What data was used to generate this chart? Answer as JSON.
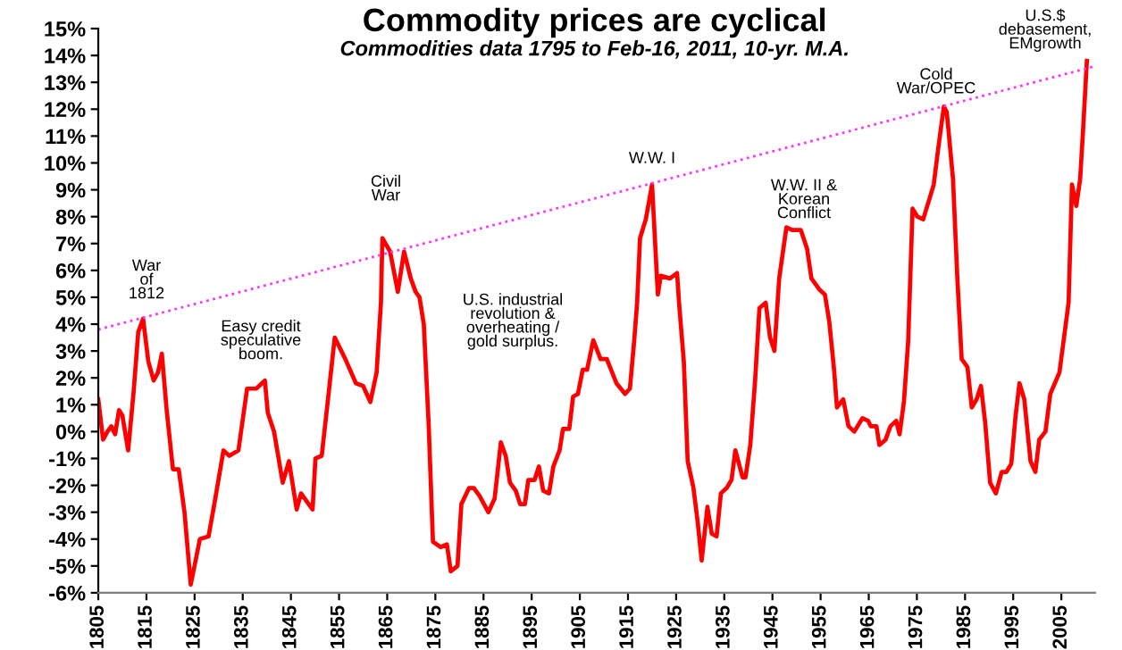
{
  "chart_data": {
    "type": "line",
    "title": "Commodity prices are cyclical",
    "subtitle": "Commodities data 1795 to Feb-16, 2011, 10-yr. M.A.",
    "xlim": [
      1805,
      2012
    ],
    "xticks": [
      1805,
      1815,
      1825,
      1835,
      1845,
      1855,
      1865,
      1875,
      1885,
      1895,
      1905,
      1915,
      1925,
      1935,
      1945,
      1955,
      1965,
      1975,
      1985,
      1995,
      2005
    ],
    "ylim": [
      -6,
      15
    ],
    "yticks": [
      {
        "value": -6,
        "label": "-6%"
      },
      {
        "value": -5,
        "label": "-5%"
      },
      {
        "value": -4,
        "label": "-4%"
      },
      {
        "value": -3,
        "label": "-3%"
      },
      {
        "value": -2,
        "label": "-2%"
      },
      {
        "value": -1,
        "label": "-1%"
      },
      {
        "value": 0,
        "label": "0%"
      },
      {
        "value": 1,
        "label": "1%"
      },
      {
        "value": 2,
        "label": "2%"
      },
      {
        "value": 3,
        "label": "3%"
      },
      {
        "value": 4,
        "label": "4%"
      },
      {
        "value": 5,
        "label": "5%"
      },
      {
        "value": 6,
        "label": "6%"
      },
      {
        "value": 7,
        "label": "7%"
      },
      {
        "value": 8,
        "label": "8%"
      },
      {
        "value": 9,
        "label": "9%"
      },
      {
        "value": 10,
        "label": "10%"
      },
      {
        "value": 11,
        "label": "11%"
      },
      {
        "value": 12,
        "label": "12%"
      },
      {
        "value": 13,
        "label": "13%"
      },
      {
        "value": 14,
        "label": "14%"
      },
      {
        "value": 15,
        "label": "15%"
      }
    ],
    "grid": false,
    "series": [
      {
        "color": "#ff0000",
        "line_style": "solid",
        "x": [
          1805,
          1806,
          1806.9,
          1807.7,
          1808.5,
          1809.3,
          1810,
          1811.2,
          1812.3,
          1813.3,
          1814.3,
          1815.4,
          1816.5,
          1817.4,
          1818.2,
          1819.2,
          1820.5,
          1821.7,
          1822.9,
          1824.2,
          1826.1,
          1827.9,
          1829.1,
          1831,
          1832.2,
          1834.1,
          1835.9,
          1837.8,
          1839.6,
          1840.2,
          1841.5,
          1843.3,
          1844.6,
          1846.2,
          1847.1,
          1849.5,
          1850.1,
          1851.4,
          1852.7,
          1854.1,
          1856.3,
          1858.5,
          1860,
          1861.5,
          1862.8,
          1863.7,
          1864,
          1865.6,
          1867.2,
          1868.5,
          1869.9,
          1870.9,
          1871.7,
          1872.6,
          1873.6,
          1874.5,
          1876.1,
          1877.4,
          1878.2,
          1879.6,
          1880.4,
          1882,
          1883,
          1884.2,
          1886,
          1887.3,
          1888.6,
          1889.6,
          1890.5,
          1891.7,
          1892.6,
          1893.6,
          1894.3,
          1895.6,
          1896.5,
          1897.4,
          1898.6,
          1899.5,
          1900.8,
          1901.5,
          1902.8,
          1903.6,
          1904.6,
          1905.6,
          1906.5,
          1907.8,
          1909.3,
          1910.6,
          1912.6,
          1914.4,
          1915.4,
          1916.3,
          1916.9,
          1917.5,
          1918.7,
          1920,
          1921.2,
          1921.8,
          1923.7,
          1925.2,
          1925.6,
          1926.6,
          1927.4,
          1928.6,
          1929.5,
          1930.3,
          1931.5,
          1932.4,
          1933.4,
          1934.3,
          1935.5,
          1936.5,
          1937.3,
          1938.8,
          1939.4,
          1940.4,
          1941.4,
          1942.3,
          1943.6,
          1944.5,
          1945.4,
          1946.4,
          1947.9,
          1949.1,
          1950.9,
          1952.2,
          1953.1,
          1954.7,
          1955.9,
          1956.8,
          1957.8,
          1958.4,
          1959.7,
          1960.8,
          1962,
          1963.7,
          1964.9,
          1965.4,
          1966.6,
          1967.2,
          1968.5,
          1969.5,
          1970.7,
          1971.4,
          1972.3,
          1973.2,
          1974.1,
          1975.1,
          1976.3,
          1977.5,
          1978.5,
          1979.4,
          1980.6,
          1981.2,
          1982.5,
          1983.4,
          1984.3,
          1985.5,
          1986.4,
          1987.4,
          1988.3,
          1989.2,
          1990.2,
          1991.4,
          1992.6,
          1993.6,
          1994.6,
          1995.5,
          1996.3,
          1997.3,
          1998.6,
          1999.6,
          2000.4,
          2001.7,
          2002.7,
          2004.6,
          2006.5,
          2007.2,
          2008.1,
          2008.9,
          2009.5,
          2010.3
        ],
        "values": [
          1.2,
          -0.3,
          0.0,
          0.2,
          -0.1,
          0.8,
          0.6,
          -0.7,
          1.4,
          3.7,
          4.2,
          2.6,
          1.9,
          2.2,
          2.9,
          0.8,
          -1.4,
          -1.4,
          -3.0,
          -5.7,
          -4.0,
          -3.9,
          -2.7,
          -0.7,
          -0.9,
          -0.7,
          1.6,
          1.6,
          1.9,
          0.7,
          0.0,
          -1.9,
          -1.1,
          -2.9,
          -2.3,
          -2.9,
          -1.0,
          -0.9,
          1.2,
          3.5,
          2.7,
          1.8,
          1.7,
          1.1,
          2.2,
          4.8,
          7.2,
          6.7,
          5.2,
          6.7,
          5.7,
          5.2,
          5.0,
          4.0,
          0.3,
          -4.1,
          -4.3,
          -4.2,
          -5.2,
          -5.0,
          -2.7,
          -2.1,
          -2.1,
          -2.4,
          -3.0,
          -2.5,
          -0.4,
          -0.9,
          -1.9,
          -2.2,
          -2.7,
          -2.7,
          -1.8,
          -1.8,
          -1.3,
          -2.2,
          -2.3,
          -1.3,
          -0.7,
          0.1,
          0.1,
          1.3,
          1.4,
          2.3,
          2.3,
          3.4,
          2.7,
          2.7,
          1.8,
          1.4,
          1.6,
          3.4,
          4.8,
          7.2,
          7.9,
          9.2,
          5.1,
          5.8,
          5.7,
          5.9,
          4.8,
          2.6,
          -1.1,
          -2.1,
          -3.4,
          -4.8,
          -2.8,
          -3.8,
          -3.9,
          -2.3,
          -2.1,
          -1.8,
          -0.7,
          -1.7,
          -1.7,
          -0.5,
          1.9,
          4.6,
          4.8,
          3.5,
          3.0,
          5.7,
          7.6,
          7.5,
          7.5,
          6.8,
          5.7,
          5.3,
          5.1,
          4.1,
          2.3,
          0.9,
          1.2,
          0.2,
          0.0,
          0.5,
          0.4,
          0.2,
          0.2,
          -0.5,
          -0.3,
          0.2,
          0.4,
          -0.1,
          1.1,
          3.4,
          8.3,
          8.0,
          7.9,
          8.6,
          9.2,
          10.5,
          12.1,
          11.9,
          9.4,
          5.7,
          2.7,
          2.4,
          0.9,
          1.2,
          1.7,
          0.3,
          -1.9,
          -2.3,
          -1.5,
          -1.5,
          -1.2,
          0.6,
          1.8,
          1.2,
          -1.1,
          -1.5,
          -0.3,
          0.0,
          1.4,
          2.2,
          4.8,
          9.2,
          8.4,
          9.4,
          11.2,
          13.8
        ]
      },
      {
        "color": "#ff33ff",
        "line_style": "dotted",
        "x": [
          1805,
          2012
        ],
        "values": [
          3.8,
          13.6
        ]
      }
    ],
    "annotations": [
      "War\nof\n1812",
      "Easy credit\nspeculative\nboom.",
      "Civil\nWar",
      "U.S. industrial\nrevolution &\noverheating /\ngold surplus.",
      "W.W. I",
      "W.W. II &\nKorean\nConflict",
      "Cold\nWar/OPEC",
      "U.S.$\ndebasement,\nEMgrowth"
    ]
  }
}
